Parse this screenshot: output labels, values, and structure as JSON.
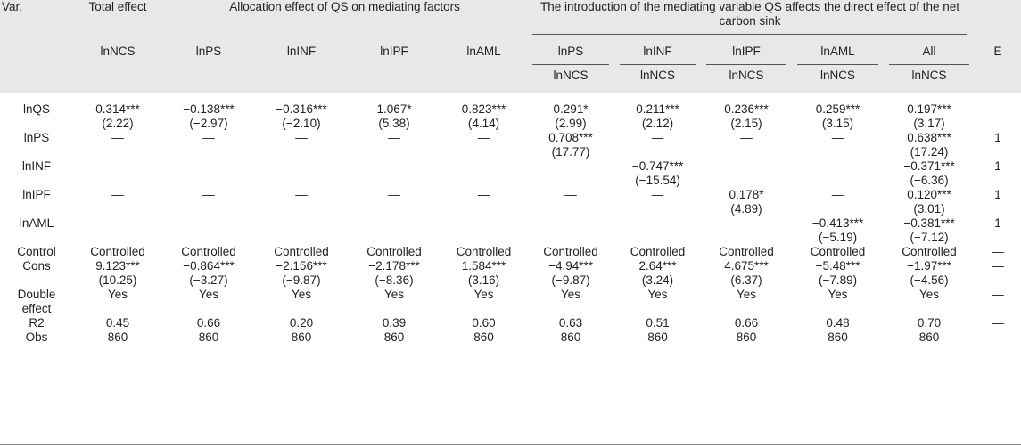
{
  "header": {
    "var": "Var.",
    "total_effect": "Total effect",
    "group1": "Allocation effect of QS on mediating factors",
    "group2": "The introduction of the mediating variable QS affects the direct effect of the net carbon sink",
    "row2": [
      "lnNCS",
      "lnPS",
      "lnINF",
      "lnIPF",
      "lnAML",
      "lnPS",
      "lnINF",
      "lnIPF",
      "lnAML",
      "All",
      "E"
    ],
    "row3": [
      "lnNCS",
      "lnNCS",
      "lnNCS",
      "lnNCS",
      "lnNCS"
    ]
  },
  "rows": [
    {
      "label": "lnQS",
      "cells": [
        [
          "0.314***",
          "(2.22)"
        ],
        [
          "−0.138***",
          "(−2.97)"
        ],
        [
          "−0.316***",
          "(−2.10)"
        ],
        [
          "1.067*",
          "(5.38)"
        ],
        [
          "0.823***",
          "(4.14)"
        ],
        [
          "0.291*",
          "(2.99)"
        ],
        [
          "0.211***",
          "(2.12)"
        ],
        [
          "0.236***",
          "(2.15)"
        ],
        [
          "0.259***",
          "(3.15)"
        ],
        [
          "0.197***",
          "(3.17)"
        ],
        [
          "—",
          ""
        ]
      ]
    },
    {
      "label": "lnPS",
      "cells": [
        [
          "—",
          ""
        ],
        [
          "—",
          ""
        ],
        [
          "—",
          ""
        ],
        [
          "—",
          ""
        ],
        [
          "—",
          ""
        ],
        [
          "0.708***",
          "(17.77)"
        ],
        [
          "—",
          ""
        ],
        [
          "—",
          ""
        ],
        [
          "—",
          ""
        ],
        [
          "0.638***",
          "(17.24)"
        ],
        [
          "1",
          ""
        ]
      ]
    },
    {
      "label": "lnINF",
      "cells": [
        [
          "—",
          ""
        ],
        [
          "—",
          ""
        ],
        [
          "—",
          ""
        ],
        [
          "—",
          ""
        ],
        [
          "—",
          ""
        ],
        [
          "—",
          ""
        ],
        [
          "−0.747***",
          "(−15.54)"
        ],
        [
          "—",
          ""
        ],
        [
          "—",
          ""
        ],
        [
          "−0.371***",
          "(−6.36)"
        ],
        [
          "1",
          ""
        ]
      ]
    },
    {
      "label": "lnIPF",
      "cells": [
        [
          "—",
          ""
        ],
        [
          "—",
          ""
        ],
        [
          "—",
          ""
        ],
        [
          "—",
          ""
        ],
        [
          "—",
          ""
        ],
        [
          "—",
          ""
        ],
        [
          "—",
          ""
        ],
        [
          "0.178*",
          "(4.89)"
        ],
        [
          "—",
          ""
        ],
        [
          "0.120***",
          "(3.01)"
        ],
        [
          "1",
          ""
        ]
      ]
    },
    {
      "label": "lnAML",
      "cells": [
        [
          "—",
          ""
        ],
        [
          "—",
          ""
        ],
        [
          "—",
          ""
        ],
        [
          "—",
          ""
        ],
        [
          "—",
          ""
        ],
        [
          "—",
          ""
        ],
        [
          "—",
          ""
        ],
        [
          "",
          ""
        ],
        [
          "−0.413***",
          "(−5.19)"
        ],
        [
          "−0.381***",
          "(−7.12)"
        ],
        [
          "1",
          ""
        ]
      ]
    },
    {
      "label": "Control",
      "cells": [
        [
          "Controlled",
          ""
        ],
        [
          "Controlled",
          ""
        ],
        [
          "Controlled",
          ""
        ],
        [
          "Controlled",
          ""
        ],
        [
          "Controlled",
          ""
        ],
        [
          "Controlled",
          ""
        ],
        [
          "Controlled",
          ""
        ],
        [
          "Controlled",
          ""
        ],
        [
          "Controlled",
          ""
        ],
        [
          "Controlled",
          ""
        ],
        [
          "—",
          ""
        ]
      ]
    },
    {
      "label": "Cons",
      "cells": [
        [
          "9.123***",
          "(10.25)"
        ],
        [
          "−0.864***",
          "(−3.27)"
        ],
        [
          "−2.156***",
          "(−9.87)"
        ],
        [
          "−2.178***",
          "(−8.36)"
        ],
        [
          "1.584***",
          "(3.16)"
        ],
        [
          "−4.94***",
          "(−9.87)"
        ],
        [
          "2.64***",
          "(3.24)"
        ],
        [
          "4.675***",
          "(6.37)"
        ],
        [
          "−5.48***",
          "(−7.89)"
        ],
        [
          "−1.97***",
          "(−4.56)"
        ],
        [
          "—",
          ""
        ]
      ]
    },
    {
      "label": "Double",
      "label2": "effect",
      "cells": [
        [
          "Yes",
          ""
        ],
        [
          "Yes",
          ""
        ],
        [
          "Yes",
          ""
        ],
        [
          "Yes",
          ""
        ],
        [
          "Yes",
          ""
        ],
        [
          "Yes",
          ""
        ],
        [
          "Yes",
          ""
        ],
        [
          "Yes",
          ""
        ],
        [
          "Yes",
          ""
        ],
        [
          "Yes",
          ""
        ],
        [
          "—",
          ""
        ]
      ]
    },
    {
      "label": "R2",
      "cells": [
        [
          "0.45",
          ""
        ],
        [
          "0.66",
          ""
        ],
        [
          "0.20",
          ""
        ],
        [
          "0.39",
          ""
        ],
        [
          "0.60",
          ""
        ],
        [
          "0.63",
          ""
        ],
        [
          "0.51",
          ""
        ],
        [
          "0.66",
          ""
        ],
        [
          "0.48",
          ""
        ],
        [
          "0.70",
          ""
        ],
        [
          "—",
          ""
        ]
      ]
    },
    {
      "label": "Obs",
      "cells": [
        [
          "860",
          ""
        ],
        [
          "860",
          ""
        ],
        [
          "860",
          ""
        ],
        [
          "860",
          ""
        ],
        [
          "860",
          ""
        ],
        [
          "860",
          ""
        ],
        [
          "860",
          ""
        ],
        [
          "860",
          ""
        ],
        [
          "860",
          ""
        ],
        [
          "860",
          ""
        ],
        [
          "—",
          ""
        ]
      ]
    }
  ]
}
